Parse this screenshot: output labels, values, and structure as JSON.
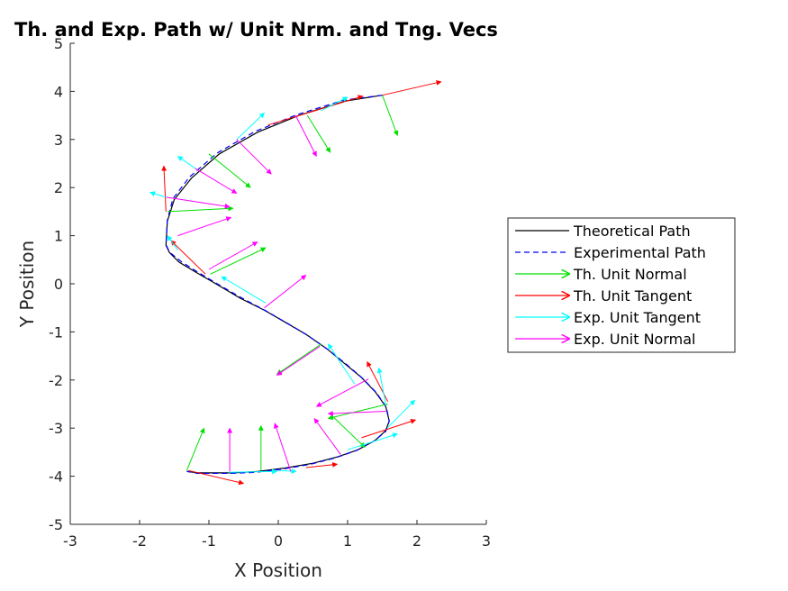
{
  "chart_data": {
    "type": "line",
    "title": "Th. and Exp. Path w/ Unit Nrm. and Tng. Vecs",
    "xlabel": "X Position",
    "ylabel": "Y Position",
    "xlim": [
      -3,
      3
    ],
    "ylim": [
      -5,
      5
    ],
    "xticks": [
      "-3",
      "-2",
      "-1",
      "0",
      "1",
      "2",
      "3"
    ],
    "yticks": [
      "-5",
      "-4",
      "-3",
      "-2",
      "-1",
      "0",
      "1",
      "2",
      "3",
      "4",
      "5"
    ],
    "grid": false,
    "legend_position": "right",
    "series": [
      {
        "name": "Theoretical Path",
        "color": "#000000",
        "style": "solid",
        "x": [
          1.5,
          0.97,
          0.3,
          -0.3,
          -0.85,
          -1.25,
          -1.5,
          -1.6,
          -1.62,
          -1.57,
          -1.43,
          -1.2,
          -0.9,
          -0.55,
          -0.2,
          0.1,
          0.4,
          0.7,
          0.95,
          1.2,
          1.4,
          1.55,
          1.6,
          1.55,
          1.4,
          1.15,
          0.85,
          0.5,
          0.1,
          -0.3,
          -0.65,
          -0.95,
          -1.15,
          -1.32
        ],
        "y": [
          3.92,
          3.8,
          3.5,
          3.15,
          2.7,
          2.2,
          1.75,
          1.3,
          0.8,
          0.65,
          0.45,
          0.25,
          0.0,
          -0.3,
          -0.55,
          -0.8,
          -1.05,
          -1.35,
          -1.65,
          -1.95,
          -2.25,
          -2.55,
          -2.85,
          -3.05,
          -3.25,
          -3.45,
          -3.6,
          -3.73,
          -3.83,
          -3.9,
          -3.93,
          -3.93,
          -3.93,
          -3.9
        ]
      },
      {
        "name": "Experimental Path",
        "color": "#0000ff",
        "style": "dashed",
        "x": [
          1.5,
          0.95,
          0.28,
          -0.33,
          -0.88,
          -1.28,
          -1.52,
          -1.6,
          -1.62,
          -1.57,
          -1.4,
          -1.18,
          -0.88,
          -0.52,
          -0.18,
          0.12,
          0.42,
          0.72,
          0.98,
          1.22,
          1.42,
          1.56,
          1.6,
          1.55,
          1.38,
          1.12,
          0.82,
          0.47,
          0.07,
          -0.33,
          -0.68,
          -0.97,
          -1.17,
          -1.32
        ],
        "y": [
          3.92,
          3.82,
          3.52,
          3.17,
          2.72,
          2.22,
          1.77,
          1.32,
          0.82,
          0.66,
          0.46,
          0.26,
          0.0,
          -0.3,
          -0.56,
          -0.81,
          -1.07,
          -1.37,
          -1.67,
          -1.97,
          -2.27,
          -2.57,
          -2.86,
          -3.07,
          -3.27,
          -3.47,
          -3.62,
          -3.75,
          -3.85,
          -3.92,
          -3.94,
          -3.94,
          -3.94,
          -3.9
        ]
      }
    ],
    "vector_series": [
      {
        "name": "Th. Unit Normal",
        "color": "#00e000",
        "vectors": [
          [
            1.5,
            3.92,
            1.72,
            3.08
          ],
          [
            0.42,
            3.5,
            0.75,
            2.73
          ],
          [
            -1.0,
            2.7,
            -0.4,
            2.0
          ],
          [
            -1.6,
            1.5,
            -0.65,
            1.57
          ],
          [
            -0.98,
            0.2,
            -0.18,
            0.75
          ],
          [
            0.62,
            -1.25,
            -0.02,
            -1.88
          ],
          [
            1.58,
            -2.5,
            0.72,
            -2.8
          ],
          [
            0.78,
            -2.75,
            1.25,
            -3.4
          ],
          [
            -0.25,
            -3.88,
            -0.25,
            -2.95
          ],
          [
            -1.32,
            -3.88,
            -1.07,
            -3.0
          ]
        ]
      },
      {
        "name": "Th. Unit Tangent",
        "color": "#ff0000",
        "vectors": [
          [
            1.5,
            3.92,
            2.35,
            4.2
          ],
          [
            -0.15,
            3.3,
            1.22,
            3.9
          ],
          [
            -1.62,
            1.5,
            -1.65,
            2.45
          ],
          [
            -1.05,
            0.2,
            -1.55,
            0.9
          ],
          [
            1.58,
            -2.45,
            1.28,
            -1.62
          ],
          [
            1.2,
            -3.2,
            1.98,
            -2.83
          ],
          [
            0.4,
            -3.82,
            0.85,
            -3.75
          ],
          [
            -1.3,
            -3.88,
            -0.5,
            -4.15
          ]
        ]
      },
      {
        "name": "Exp. Unit Tangent",
        "color": "#00ffff",
        "vectors": [
          [
            0.62,
            3.6,
            1.0,
            3.88
          ],
          [
            -0.6,
            3.0,
            -0.2,
            3.55
          ],
          [
            -1.2,
            2.4,
            -1.45,
            2.65
          ],
          [
            -1.62,
            1.8,
            -1.85,
            1.9
          ],
          [
            -1.45,
            0.7,
            -1.6,
            1.0
          ],
          [
            -0.18,
            -0.4,
            -0.82,
            0.15
          ],
          [
            1.1,
            -2.08,
            0.72,
            -1.25
          ],
          [
            1.55,
            -2.5,
            1.45,
            -1.75
          ],
          [
            1.57,
            -3.0,
            1.97,
            -2.42
          ],
          [
            1.0,
            -3.45,
            1.72,
            -3.12
          ],
          [
            0.0,
            -3.88,
            0.26,
            -3.9
          ],
          [
            -0.72,
            -3.92,
            -0.02,
            -3.9
          ]
        ]
      },
      {
        "name": "Exp. Unit Normal",
        "color": "#ff00ff",
        "vectors": [
          [
            0.25,
            3.5,
            0.55,
            2.65
          ],
          [
            -0.6,
            3.0,
            -0.1,
            2.28
          ],
          [
            -1.2,
            2.4,
            -0.6,
            1.88
          ],
          [
            -1.62,
            1.8,
            -0.7,
            1.6
          ],
          [
            -1.45,
            1.0,
            -0.68,
            1.38
          ],
          [
            -1.0,
            0.3,
            -0.3,
            0.87
          ],
          [
            -0.2,
            -0.5,
            0.4,
            0.18
          ],
          [
            0.6,
            -1.3,
            -0.02,
            -1.9
          ],
          [
            1.55,
            -2.65,
            0.72,
            -2.7
          ],
          [
            1.3,
            -1.98,
            0.55,
            -2.55
          ],
          [
            0.9,
            -3.55,
            0.52,
            -2.8
          ],
          [
            0.18,
            -3.9,
            -0.05,
            -2.9
          ],
          [
            -0.7,
            -3.9,
            -0.7,
            -3.0
          ]
        ]
      }
    ]
  }
}
